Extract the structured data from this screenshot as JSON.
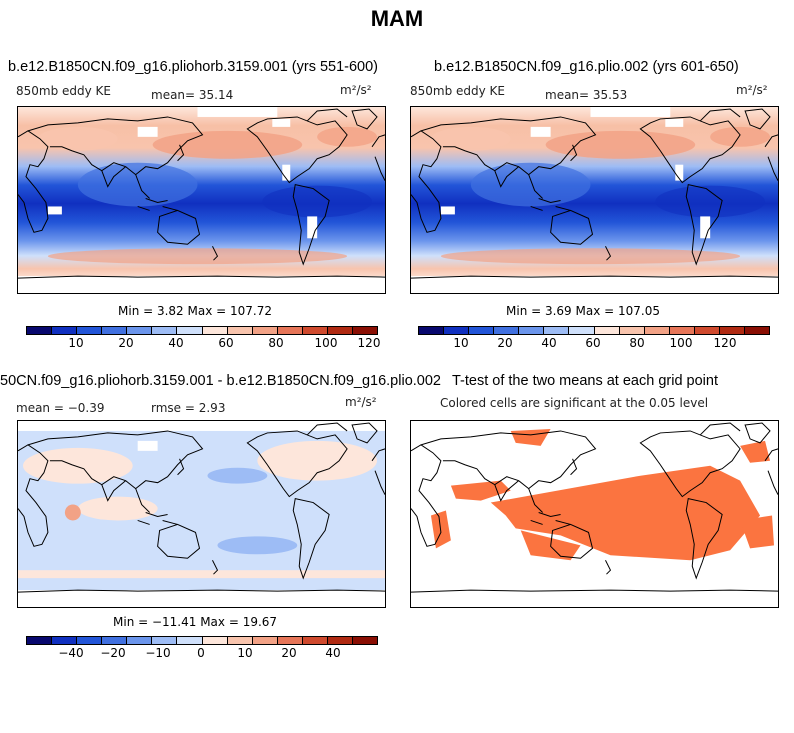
{
  "page_title": "MAM",
  "panels": [
    {
      "title": "b.e12.B1850CN.f09_g16.pliohorb.3159.001 (yrs 551-600)",
      "left_label": "850mb eddy KE",
      "center_label": "mean=  35.14",
      "units": "m²/s²",
      "minmax": "Min =    3.82 Max = 107.72",
      "colorbar_ticks": [
        "10",
        "20",
        "40",
        "60",
        "80",
        "100",
        "120"
      ],
      "map_type": "full"
    },
    {
      "title": "b.e12.B1850CN.f09_g16.plio.002 (yrs 601-650)",
      "left_label": "850mb eddy KE",
      "center_label": "mean=  35.53",
      "units": "m²/s²",
      "minmax": "Min =    3.69 Max = 107.05",
      "colorbar_ticks": [
        "10",
        "20",
        "40",
        "60",
        "80",
        "100",
        "120"
      ],
      "map_type": "full"
    },
    {
      "title": "50CN.f09_g16.pliohorb.3159.001 - b.e12.B1850CN.f09_g16.plio.002",
      "left_label": "mean =  −0.39",
      "center_label": "rmse =   2.93",
      "units": "m²/s²",
      "minmax": "Min = −11.41 Max =  19.67",
      "colorbar_ticks": [
        "−40",
        "−20",
        "−10",
        "0",
        "10",
        "20",
        "40"
      ],
      "map_type": "diff"
    },
    {
      "title": "T-test of the two means at each grid point",
      "subtitle": "Colored cells are significant at the 0.05 level",
      "map_type": "ttest"
    }
  ],
  "colors": {
    "scale": [
      "#08086e",
      "#1030c0",
      "#2255d8",
      "#4070e0",
      "#6b95ec",
      "#9dbcf5",
      "#cfe0fb",
      "#fde6db",
      "#f8c4ad",
      "#f2a286",
      "#e67558",
      "#cf4a2e",
      "#b02a12",
      "#8a0f04"
    ],
    "significant": "#fb7440"
  }
}
